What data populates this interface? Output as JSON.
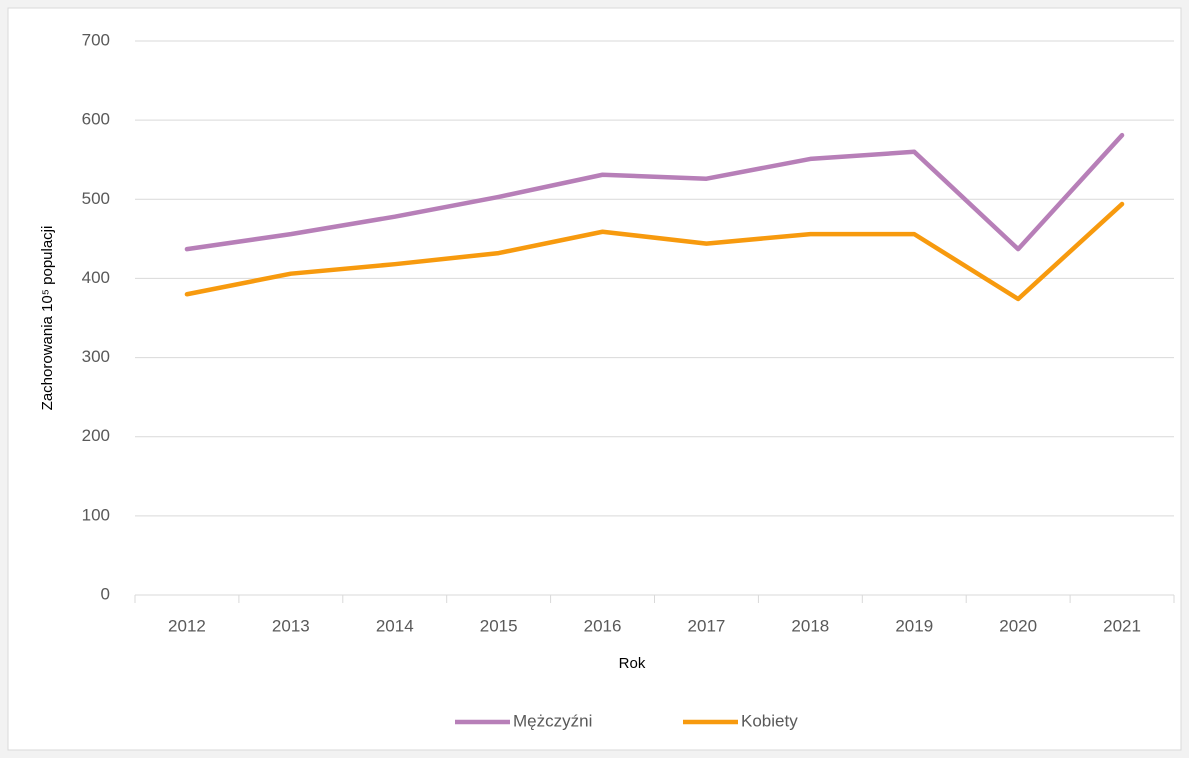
{
  "chart_data": {
    "type": "line",
    "x_label": "Rok",
    "y_label": "Zachorowania 10⁵ populacji",
    "categories": [
      "2012",
      "2013",
      "2014",
      "2015",
      "2016",
      "2017",
      "2018",
      "2019",
      "2020",
      "2021"
    ],
    "series": [
      {
        "name": "Mężczyźni",
        "color": "#b77fb8",
        "values": [
          437,
          456,
          478,
          503,
          531,
          526,
          551,
          560,
          437,
          581
        ]
      },
      {
        "name": "Kobiety",
        "color": "#f79a0e",
        "values": [
          380,
          406,
          418,
          432,
          459,
          444,
          456,
          456,
          374,
          494
        ]
      }
    ],
    "ylim": [
      0,
      700
    ],
    "yticks": [
      0,
      100,
      200,
      300,
      400,
      500,
      600,
      700
    ],
    "grid": true,
    "legend": "bottom"
  }
}
